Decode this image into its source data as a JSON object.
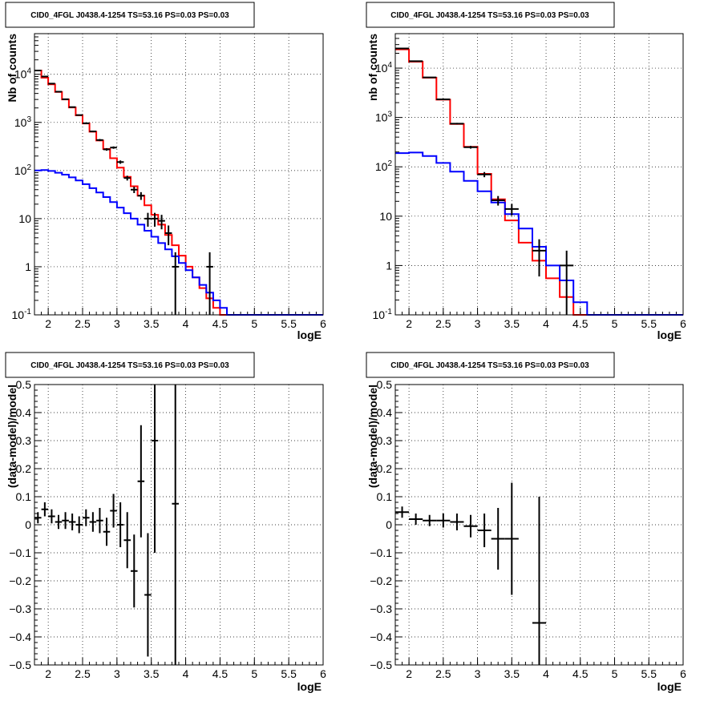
{
  "chart_data": [
    {
      "type": "line",
      "title": "CID0_4FGL J0438.4-1254 TS=53.16 PS=0.03 PS=0.03",
      "xlabel": "logE",
      "ylabel": "Nb of counts",
      "xlim": [
        1.8,
        6.0
      ],
      "ylim": [
        0.1,
        70000
      ],
      "yscale": "log",
      "xticks": [
        2,
        2.5,
        3,
        3.5,
        4,
        4.5,
        5,
        5.5,
        6
      ],
      "xtick_labels": [
        "2",
        "2.5",
        "3",
        "3.5",
        "4",
        "4.5",
        "5",
        "5.5",
        "6"
      ],
      "yticks": [
        0.1,
        1,
        10,
        100,
        1000,
        10000
      ],
      "ytick_labels": [
        "10^-1",
        "1",
        "10",
        "10^2",
        "10^3",
        "10^4"
      ],
      "grid": true,
      "bin_edges": [
        1.8,
        1.9,
        2.0,
        2.1,
        2.2,
        2.3,
        2.4,
        2.5,
        2.6,
        2.7,
        2.8,
        2.9,
        3.0,
        3.1,
        3.2,
        3.3,
        3.4,
        3.5,
        3.6,
        3.7,
        3.8,
        3.9,
        4.0,
        4.1,
        4.2,
        4.3,
        4.4,
        4.5,
        4.6,
        4.7,
        4.8,
        4.9,
        5.0,
        5.1,
        5.2,
        5.3,
        5.4,
        5.5,
        5.6,
        5.7,
        5.8,
        5.9,
        6.0
      ],
      "series": [
        {
          "color": "#ff0000",
          "style": "step",
          "values": [
            12000,
            8500,
            6200,
            4300,
            3000,
            2050,
            1400,
            950,
            640,
            420,
            280,
            180,
            115,
            74,
            47,
            30,
            19,
            12,
            7.5,
            4.6,
            2.8,
            1.7,
            1.0,
            0.6,
            0.36,
            0.22,
            0.14,
            0.1,
            0.1,
            0.1,
            0.1,
            0.1,
            0.1,
            0.1,
            0.1,
            0.1,
            0.1,
            0.1,
            0.1,
            0.1,
            0.1,
            0.1
          ]
        },
        {
          "color": "#0000ff",
          "style": "step",
          "values": [
            100,
            102,
            98,
            90,
            82,
            72,
            62,
            52,
            43,
            35,
            28,
            22,
            17,
            13,
            10,
            7.5,
            5.6,
            4.2,
            3.1,
            2.3,
            1.65,
            1.2,
            0.85,
            0.6,
            0.42,
            0.29,
            0.2,
            0.14,
            0.1,
            0.1,
            0.1,
            0.1,
            0.1,
            0.1,
            0.1,
            0.1,
            0.1,
            0.1,
            0.1,
            0.1,
            0.1,
            0.1
          ]
        },
        {
          "color": "#000000",
          "style": "points",
          "points": [
            {
              "x": 1.85,
              "y": 12000,
              "yerr": 110,
              "xerr": 0.05
            },
            {
              "x": 1.95,
              "y": 9000,
              "yerr": 95,
              "xerr": 0.05
            },
            {
              "x": 2.05,
              "y": 6400,
              "yerr": 80,
              "xerr": 0.05
            },
            {
              "x": 2.15,
              "y": 4350,
              "yerr": 66,
              "xerr": 0.05
            },
            {
              "x": 2.25,
              "y": 3030,
              "yerr": 55,
              "xerr": 0.05
            },
            {
              "x": 2.35,
              "y": 2080,
              "yerr": 46,
              "xerr": 0.05
            },
            {
              "x": 2.45,
              "y": 1420,
              "yerr": 38,
              "xerr": 0.05
            },
            {
              "x": 2.55,
              "y": 960,
              "yerr": 31,
              "xerr": 0.05
            },
            {
              "x": 2.65,
              "y": 650,
              "yerr": 25,
              "xerr": 0.05
            },
            {
              "x": 2.75,
              "y": 430,
              "yerr": 21,
              "xerr": 0.05
            },
            {
              "x": 2.85,
              "y": 275,
              "yerr": 17,
              "xerr": 0.05
            },
            {
              "x": 2.95,
              "y": 300,
              "yerr": 17,
              "xerr": 0.05
            },
            {
              "x": 3.05,
              "y": 150,
              "yerr": 12,
              "xerr": 0.05
            },
            {
              "x": 3.15,
              "y": 70,
              "yerr": 8,
              "xerr": 0.05
            },
            {
              "x": 3.25,
              "y": 40,
              "yerr": 6,
              "xerr": 0.05
            },
            {
              "x": 3.35,
              "y": 30,
              "yerr": 5.5,
              "xerr": 0.05
            },
            {
              "x": 3.45,
              "y": 10,
              "yerr": 3.2,
              "xerr": 0.05
            },
            {
              "x": 3.55,
              "y": 10,
              "yerr": 3.2,
              "xerr": 0.05
            },
            {
              "x": 3.65,
              "y": 9,
              "yerr": 3,
              "xerr": 0.05
            },
            {
              "x": 3.75,
              "y": 5,
              "yerr": 2.2,
              "xerr": 0.05
            },
            {
              "x": 3.85,
              "y": 1,
              "yerr": 1,
              "xerr": 0.05
            },
            {
              "x": 4.35,
              "y": 1,
              "yerr": 1,
              "xerr": 0.05
            }
          ]
        }
      ]
    },
    {
      "type": "line",
      "title": "CID0_4FGL J0438.4-1254 TS=53.16 PS=0.03 PS=0.03",
      "xlabel": "logE",
      "ylabel": "nb of counts",
      "xlim": [
        1.8,
        6.0
      ],
      "ylim": [
        0.1,
        50000
      ],
      "yscale": "log",
      "xticks": [
        2,
        2.5,
        3,
        3.5,
        4,
        4.5,
        5,
        5.5,
        6
      ],
      "xtick_labels": [
        "2",
        "2.5",
        "3",
        "3.5",
        "4",
        "4.5",
        "5",
        "5.5",
        "6"
      ],
      "yticks": [
        0.1,
        1,
        10,
        100,
        1000,
        10000
      ],
      "ytick_labels": [
        "10^-1",
        "1",
        "10",
        "10^2",
        "10^3",
        "10^4"
      ],
      "grid": true,
      "bin_edges": [
        1.8,
        2.0,
        2.2,
        2.4,
        2.6,
        2.8,
        3.0,
        3.2,
        3.4,
        3.6,
        3.8,
        4.0,
        4.2,
        4.4,
        4.6,
        4.8,
        5.0,
        5.2,
        5.4,
        5.6,
        5.8,
        6.0
      ],
      "series": [
        {
          "color": "#ff0000",
          "style": "step",
          "values": [
            24000,
            13500,
            6400,
            2300,
            740,
            255,
            72,
            22,
            8.2,
            2.9,
            1.25,
            0.55,
            0.23,
            0.1,
            0.1,
            0.1,
            0.1,
            0.1,
            0.1,
            0.1,
            0.1
          ]
        },
        {
          "color": "#0000ff",
          "style": "step",
          "values": [
            190,
            195,
            165,
            120,
            80,
            52,
            32,
            19,
            11,
            5.6,
            2.4,
            1.0,
            0.5,
            0.18,
            0.1,
            0.1,
            0.1,
            0.1,
            0.1,
            0.1,
            0.1
          ]
        },
        {
          "color": "#000000",
          "style": "points",
          "points": [
            {
              "x": 1.9,
              "y": 25000,
              "yerr": 160,
              "xerr": 0.1
            },
            {
              "x": 2.1,
              "y": 13800,
              "yerr": 117,
              "xerr": 0.1
            },
            {
              "x": 2.3,
              "y": 6500,
              "yerr": 80,
              "xerr": 0.1
            },
            {
              "x": 2.5,
              "y": 2330,
              "yerr": 48,
              "xerr": 0.1
            },
            {
              "x": 2.7,
              "y": 750,
              "yerr": 27,
              "xerr": 0.1
            },
            {
              "x": 2.9,
              "y": 250,
              "yerr": 16,
              "xerr": 0.1
            },
            {
              "x": 3.1,
              "y": 70,
              "yerr": 8.4,
              "xerr": 0.1
            },
            {
              "x": 3.3,
              "y": 21,
              "yerr": 4.6,
              "xerr": 0.1
            },
            {
              "x": 3.5,
              "y": 14,
              "yerr": 3.7,
              "xerr": 0.1
            },
            {
              "x": 3.9,
              "y": 2,
              "yerr": 1.4,
              "xerr": 0.1
            },
            {
              "x": 4.3,
              "y": 1,
              "yerr": 1,
              "xerr": 0.1
            }
          ]
        }
      ]
    },
    {
      "type": "scatter",
      "title": "CID0_4FGL J0438.4-1254 TS=53.16 PS=0.03 PS=0.03",
      "xlabel": "logE",
      "ylabel": "(data-model)/model",
      "xlim": [
        1.8,
        6.0
      ],
      "ylim": [
        -0.5,
        0.5
      ],
      "xticks": [
        2,
        2.5,
        3,
        3.5,
        4,
        4.5,
        5,
        5.5,
        6
      ],
      "xtick_labels": [
        "2",
        "2.5",
        "3",
        "3.5",
        "4",
        "4.5",
        "5",
        "5.5",
        "6"
      ],
      "yticks": [
        -0.5,
        -0.4,
        -0.3,
        -0.2,
        -0.1,
        0,
        0.1,
        0.2,
        0.3,
        0.4,
        0.5
      ],
      "ytick_labels": [
        "−0.5",
        "−0.4",
        "−0.3",
        "−0.2",
        "−0.1",
        "0",
        "0.1",
        "0.2",
        "0.3",
        "0.4",
        "0.5"
      ],
      "grid": true,
      "series": [
        {
          "color": "#000000",
          "points": [
            {
              "x": 1.85,
              "y": 0.025,
              "yerr": 0.02,
              "xerr": 0.05
            },
            {
              "x": 1.95,
              "y": 0.055,
              "yerr": 0.025,
              "xerr": 0.05
            },
            {
              "x": 2.05,
              "y": 0.03,
              "yerr": 0.025,
              "xerr": 0.05
            },
            {
              "x": 2.15,
              "y": 0.01,
              "yerr": 0.025,
              "xerr": 0.05
            },
            {
              "x": 2.25,
              "y": 0.015,
              "yerr": 0.03,
              "xerr": 0.05
            },
            {
              "x": 2.35,
              "y": 0.01,
              "yerr": 0.03,
              "xerr": 0.05
            },
            {
              "x": 2.45,
              "y": 0.0,
              "yerr": 0.03,
              "xerr": 0.05
            },
            {
              "x": 2.55,
              "y": 0.025,
              "yerr": 0.03,
              "xerr": 0.05
            },
            {
              "x": 2.65,
              "y": 0.01,
              "yerr": 0.035,
              "xerr": 0.05
            },
            {
              "x": 2.75,
              "y": 0.015,
              "yerr": 0.045,
              "xerr": 0.05
            },
            {
              "x": 2.85,
              "y": -0.025,
              "yerr": 0.05,
              "xerr": 0.05
            },
            {
              "x": 2.95,
              "y": 0.05,
              "yerr": 0.06,
              "xerr": 0.05
            },
            {
              "x": 3.05,
              "y": 0.0,
              "yerr": 0.08,
              "xerr": 0.05
            },
            {
              "x": 3.15,
              "y": -0.055,
              "yerr": 0.1,
              "xerr": 0.05
            },
            {
              "x": 3.25,
              "y": -0.165,
              "yerr": 0.13,
              "xerr": 0.05
            },
            {
              "x": 3.35,
              "y": 0.155,
              "yerr": 0.2,
              "xerr": 0.05
            },
            {
              "x": 3.45,
              "y": -0.25,
              "yerr": 0.22,
              "xerr": 0.05
            },
            {
              "x": 3.55,
              "y": 0.3,
              "yerr": 0.4,
              "xerr": 0.05
            },
            {
              "x": 3.85,
              "y": 0.075,
              "yerr": 0.6,
              "xerr": 0.05
            }
          ]
        }
      ]
    },
    {
      "type": "scatter",
      "title": "CID0_4FGL J0438.4-1254 TS=53.16 PS=0.03 PS=0.03",
      "xlabel": "logE",
      "ylabel": "(data-model)/model",
      "xlim": [
        1.8,
        6.0
      ],
      "ylim": [
        -0.5,
        0.5
      ],
      "xticks": [
        2,
        2.5,
        3,
        3.5,
        4,
        4.5,
        5,
        5.5,
        6
      ],
      "xtick_labels": [
        "2",
        "2.5",
        "3",
        "3.5",
        "4",
        "4.5",
        "5",
        "5.5",
        "6"
      ],
      "yticks": [
        -0.5,
        -0.4,
        -0.3,
        -0.2,
        -0.1,
        0,
        0.1,
        0.2,
        0.3,
        0.4,
        0.5
      ],
      "ytick_labels": [
        "−0.5",
        "−0.4",
        "−0.3",
        "−0.2",
        "−0.1",
        "0",
        "0.1",
        "0.2",
        "0.3",
        "0.4",
        "0.5"
      ],
      "grid": true,
      "series": [
        {
          "color": "#000000",
          "points": [
            {
              "x": 1.9,
              "y": 0.045,
              "yerr": 0.02,
              "xerr": 0.1
            },
            {
              "x": 2.1,
              "y": 0.02,
              "yerr": 0.02,
              "xerr": 0.1
            },
            {
              "x": 2.3,
              "y": 0.015,
              "yerr": 0.02,
              "xerr": 0.1
            },
            {
              "x": 2.5,
              "y": 0.015,
              "yerr": 0.025,
              "xerr": 0.1
            },
            {
              "x": 2.7,
              "y": 0.01,
              "yerr": 0.03,
              "xerr": 0.1
            },
            {
              "x": 2.9,
              "y": -0.005,
              "yerr": 0.04,
              "xerr": 0.1
            },
            {
              "x": 3.1,
              "y": -0.02,
              "yerr": 0.06,
              "xerr": 0.1
            },
            {
              "x": 3.3,
              "y": -0.05,
              "yerr": 0.11,
              "xerr": 0.1
            },
            {
              "x": 3.5,
              "y": -0.05,
              "yerr": 0.2,
              "xerr": 0.1
            },
            {
              "x": 3.9,
              "y": -0.35,
              "yerr": 0.45,
              "xerr": 0.1
            }
          ]
        }
      ]
    }
  ]
}
